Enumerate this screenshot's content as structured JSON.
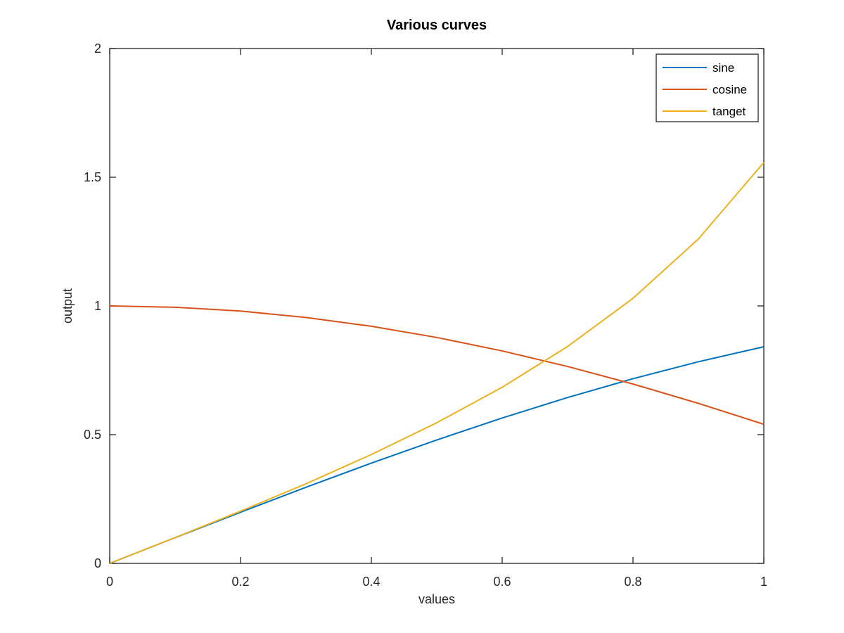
{
  "chart_data": {
    "type": "line",
    "title": "Various curves",
    "xlabel": "values",
    "ylabel": "output",
    "xlim": [
      0,
      1
    ],
    "ylim": [
      0,
      2
    ],
    "xticks": [
      0,
      0.2,
      0.4,
      0.6,
      0.8,
      1
    ],
    "xtick_labels": [
      "0",
      "0.2",
      "0.4",
      "0.6",
      "0.8",
      "1"
    ],
    "yticks": [
      0,
      0.5,
      1,
      1.5,
      2
    ],
    "ytick_labels": [
      "0",
      "0.5",
      "1",
      "1.5",
      "2"
    ],
    "grid": false,
    "legend_position": "top-right",
    "x": [
      0,
      0.1,
      0.2,
      0.3,
      0.4,
      0.5,
      0.6,
      0.7,
      0.8,
      0.9,
      1.0
    ],
    "series": [
      {
        "name": "sine",
        "color": "#0072BD",
        "values": [
          0,
          0.0998,
          0.1987,
          0.2955,
          0.3894,
          0.4794,
          0.5646,
          0.6442,
          0.7174,
          0.7833,
          0.8415
        ]
      },
      {
        "name": "cosine",
        "color": "#D95319",
        "values": [
          1,
          0.995,
          0.9801,
          0.9553,
          0.9211,
          0.8776,
          0.8253,
          0.7648,
          0.6967,
          0.6216,
          0.5403
        ]
      },
      {
        "name": "tanget",
        "color": "#EDB120",
        "values": [
          0,
          0.1003,
          0.2027,
          0.3093,
          0.4228,
          0.5463,
          0.6841,
          0.8423,
          1.0296,
          1.2602,
          1.5574
        ]
      }
    ]
  }
}
